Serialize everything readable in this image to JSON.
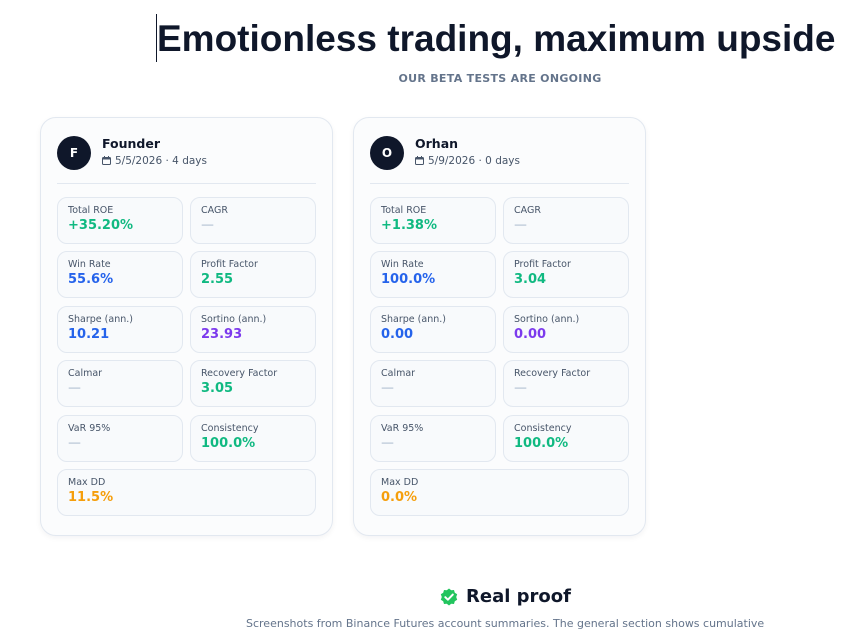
{
  "header": {
    "title": "Emotionless trading, maximum upside",
    "subtitle": "OUR BETA TESTS ARE ONGOING"
  },
  "cards": [
    {
      "avatar": "F",
      "name": "Founder",
      "date": "5/5/2026 · 4 days",
      "metrics": [
        {
          "label": "Total ROE",
          "value": "+35.20%",
          "color": "#10b981"
        },
        {
          "label": "CAGR",
          "value": "—",
          "color": "#cbd5e1"
        },
        {
          "label": "Win Rate",
          "value": "55.6%",
          "color": "#2563eb"
        },
        {
          "label": "Profit Factor",
          "value": "2.55",
          "color": "#10b981"
        },
        {
          "label": "Sharpe (ann.)",
          "value": "10.21",
          "color": "#2563eb"
        },
        {
          "label": "Sortino (ann.)",
          "value": "23.93",
          "color": "#7c3aed"
        },
        {
          "label": "Calmar",
          "value": "—",
          "color": "#cbd5e1"
        },
        {
          "label": "Recovery Factor",
          "value": "3.05",
          "color": "#10b981"
        },
        {
          "label": "VaR 95%",
          "value": "—",
          "color": "#cbd5e1"
        },
        {
          "label": "Consistency",
          "value": "100.0%",
          "color": "#10b981"
        },
        {
          "label": "Max DD",
          "value": "11.5%",
          "color": "#f59e0b"
        }
      ]
    },
    {
      "avatar": "O",
      "name": "Orhan",
      "date": "5/9/2026 · 0 days",
      "metrics": [
        {
          "label": "Total ROE",
          "value": "+1.38%",
          "color": "#10b981"
        },
        {
          "label": "CAGR",
          "value": "—",
          "color": "#cbd5e1"
        },
        {
          "label": "Win Rate",
          "value": "100.0%",
          "color": "#2563eb"
        },
        {
          "label": "Profit Factor",
          "value": "3.04",
          "color": "#10b981"
        },
        {
          "label": "Sharpe (ann.)",
          "value": "0.00",
          "color": "#2563eb"
        },
        {
          "label": "Sortino (ann.)",
          "value": "0.00",
          "color": "#7c3aed"
        },
        {
          "label": "Calmar",
          "value": "—",
          "color": "#cbd5e1"
        },
        {
          "label": "Recovery Factor",
          "value": "—",
          "color": "#cbd5e1"
        },
        {
          "label": "VaR 95%",
          "value": "—",
          "color": "#cbd5e1"
        },
        {
          "label": "Consistency",
          "value": "100.0%",
          "color": "#10b981"
        },
        {
          "label": "Max DD",
          "value": "0.0%",
          "color": "#f59e0b"
        }
      ]
    }
  ],
  "proof": {
    "title": "Real proof",
    "text": "Screenshots from Binance Futures account summaries. The general section shows cumulative"
  }
}
